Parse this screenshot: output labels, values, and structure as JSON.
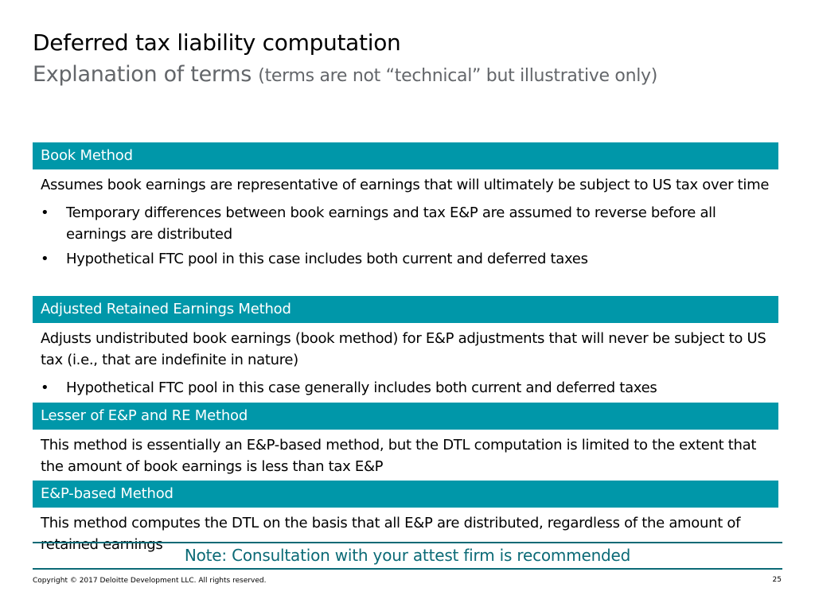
{
  "header": {
    "title": "Deferred tax liability computation",
    "subtitle_main": "Explanation of terms",
    "subtitle_note": "(terms are not “technical” but illustrative only)"
  },
  "sections": [
    {
      "heading": "Book Method",
      "intro": "Assumes book earnings are representative of earnings that will ultimately be subject to US tax over time",
      "bullets": [
        "Temporary differences between book earnings and tax E&P are assumed to reverse before all earnings are distributed",
        "Hypothetical FTC pool in this case includes both current and deferred taxes"
      ]
    },
    {
      "heading": "Adjusted Retained Earnings Method",
      "intro": "Adjusts undistributed book earnings (book method) for E&P adjustments that will never be subject to US tax (i.e., that are indefinite in nature)",
      "bullets": [
        "Hypothetical FTC pool in this case generally includes both current and deferred taxes"
      ]
    },
    {
      "heading": "Lesser of E&P and RE Method",
      "intro": "This method is essentially an E&P-based method, but the DTL computation is limited to the extent that the amount of book earnings is less than tax E&P",
      "bullets": []
    },
    {
      "heading": "E&P-based Method",
      "intro": "This method computes the DTL on the basis that all E&P are distributed, regardless of the amount of retained earnings",
      "bullets": []
    }
  ],
  "bullet_glyph": "•",
  "note": "Note: Consultation with your attest firm is recommended",
  "footer": {
    "copyright": "Copyright © 2017 Deloitte Development LLC. All rights reserved.",
    "page_number": "25"
  },
  "colors": {
    "header_band": "#0097a9",
    "note_text": "#0b6a76",
    "subtitle_gray": "#63666a"
  }
}
